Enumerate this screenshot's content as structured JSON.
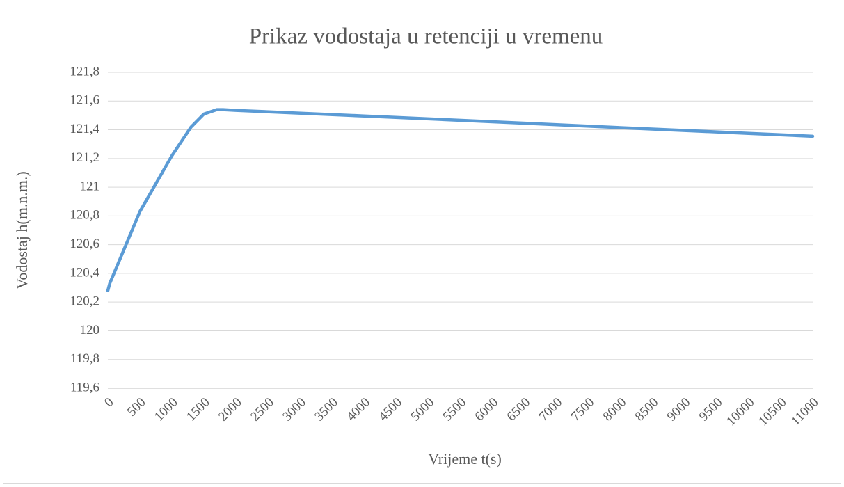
{
  "chart_data": {
    "type": "line",
    "title": "Prikaz vodostaja u retenciji u vremenu",
    "x_label": "Vrijeme t(s)",
    "y_label": "Vodostaj h(m.n.m.)",
    "series": [
      {
        "name": "Vodostaj",
        "color": "#5b9bd5",
        "x": [
          0,
          30,
          500,
          1000,
          1300,
          1500,
          1700,
          1800,
          2000,
          4000,
          6000,
          8000,
          10000,
          11000
        ],
        "values": [
          120.28,
          120.33,
          120.83,
          121.22,
          121.42,
          121.51,
          121.54,
          121.54,
          121.535,
          121.496,
          121.456,
          121.415,
          121.375,
          121.355
        ]
      }
    ],
    "xlim": [
      0,
      11000
    ],
    "xticks": [
      0,
      500,
      1000,
      1500,
      2000,
      2500,
      3000,
      3500,
      4000,
      4500,
      5000,
      5500,
      6000,
      6500,
      7000,
      7500,
      8000,
      8500,
      9000,
      9500,
      10000,
      10500,
      11000
    ],
    "ylim": [
      119.6,
      121.8
    ],
    "yticks": [
      {
        "value": 119.6,
        "label": "119,6"
      },
      {
        "value": 119.8,
        "label": "119,8"
      },
      120,
      {
        "value": 120.2,
        "label": "120,2"
      },
      {
        "value": 120.4,
        "label": "120,4"
      },
      {
        "value": 120.6,
        "label": "120,6"
      },
      {
        "value": 120.8,
        "label": "120,8"
      },
      121,
      {
        "value": 121.2,
        "label": "121,2"
      },
      {
        "value": 121.4,
        "label": "121,4"
      },
      {
        "value": 121.6,
        "label": "121,6"
      },
      {
        "value": 121.8,
        "label": "121,8"
      }
    ],
    "grid": true
  }
}
